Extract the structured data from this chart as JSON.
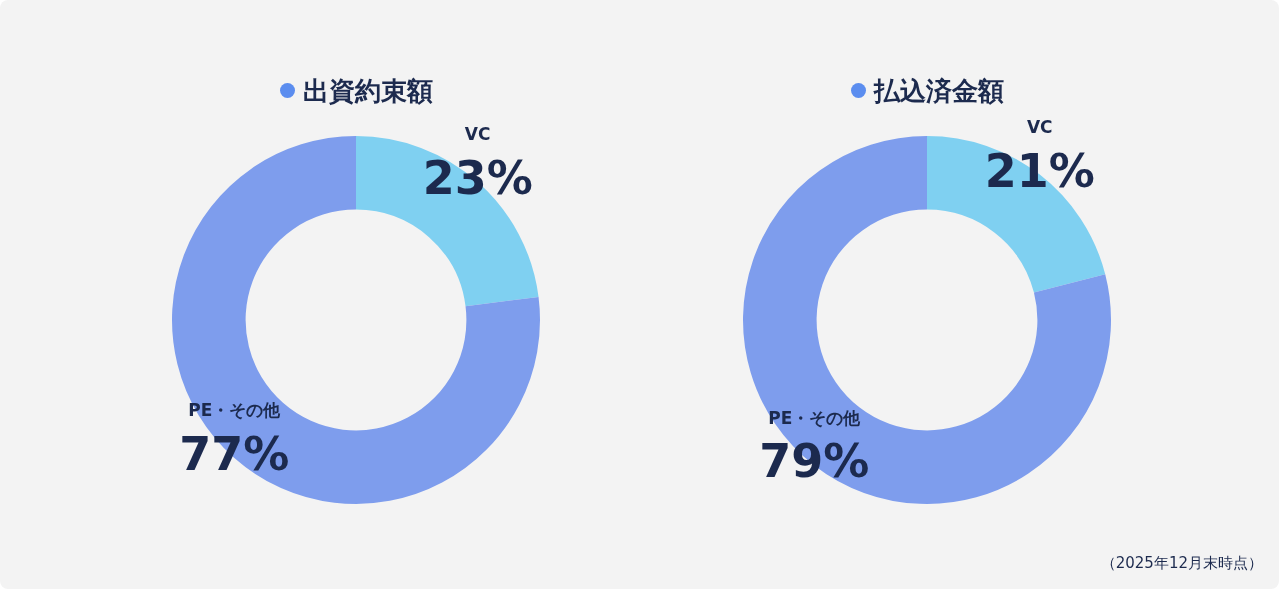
{
  "chart_data": [
    {
      "type": "donut",
      "title": "出資約束額",
      "categories": [
        "VC",
        "PE・その他"
      ],
      "values": [
        23,
        77
      ],
      "colors": [
        "#7fd0f1",
        "#7e9ded"
      ],
      "value_labels": [
        "23%",
        "77%"
      ]
    },
    {
      "type": "donut",
      "title": "払込済金額",
      "categories": [
        "VC",
        "PE・その他"
      ],
      "values": [
        21,
        79
      ],
      "colors": [
        "#7fd0f1",
        "#7e9ded"
      ],
      "value_labels": [
        "21%",
        "79%"
      ],
      "annotations": [
        "（2025年12月末時点）"
      ]
    }
  ]
}
